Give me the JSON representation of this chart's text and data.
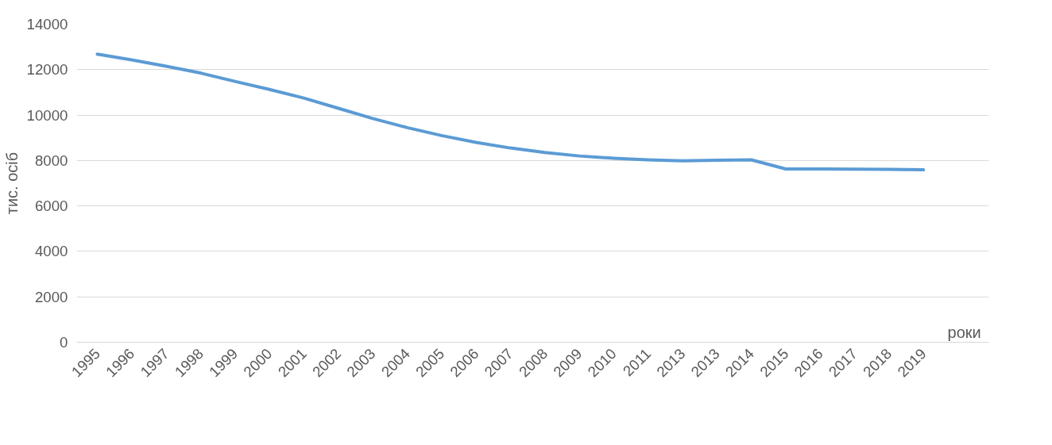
{
  "chart_data": {
    "type": "line",
    "xlabel": "роки",
    "ylabel": "тис. осіб",
    "categories": [
      "1995",
      "1996",
      "1997",
      "1998",
      "1999",
      "2000",
      "2001",
      "2002",
      "2003",
      "2004",
      "2005",
      "2006",
      "2007",
      "2008",
      "2009",
      "2010",
      "2011",
      "2013",
      "2013",
      "2014",
      "2015",
      "2016",
      "2017",
      "2018",
      "2019"
    ],
    "series": [
      {
        "color": "#5b9bd5",
        "values": [
          12680,
          12430,
          12150,
          11850,
          11480,
          11130,
          10750,
          10300,
          9850,
          9450,
          9100,
          8800,
          8550,
          8350,
          8200,
          8100,
          8030,
          7990,
          8010,
          8030,
          7630,
          7630,
          7620,
          7610,
          7590
        ]
      }
    ],
    "ylim": [
      0,
      14000
    ],
    "yticks": [
      0,
      2000,
      4000,
      6000,
      8000,
      10000,
      12000,
      14000
    ],
    "grid": "y",
    "marker": "none",
    "line_style": "solid"
  }
}
